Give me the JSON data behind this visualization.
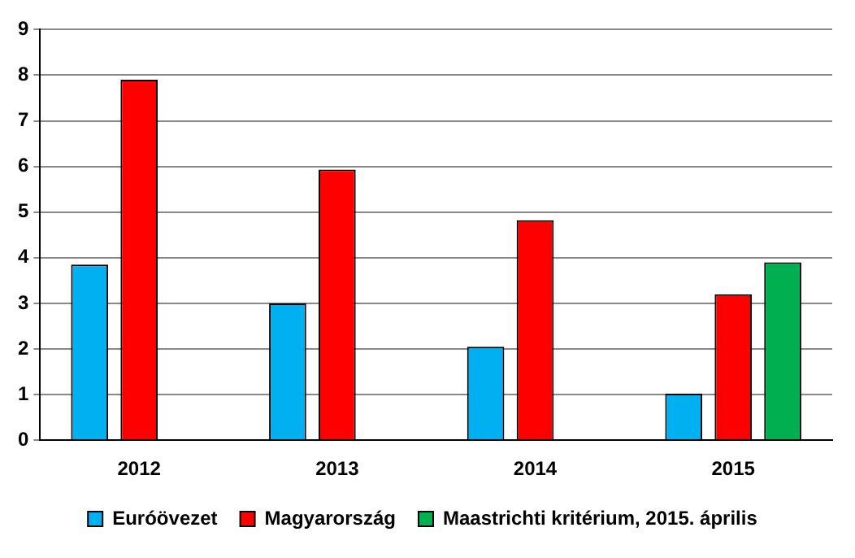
{
  "chart_data": {
    "type": "bar",
    "categories": [
      "2012",
      "2013",
      "2014",
      "2015"
    ],
    "series": [
      {
        "name": "Euróövezet",
        "color": "#00b0f0",
        "values": [
          3.85,
          3.0,
          2.05,
          1.02
        ]
      },
      {
        "name": "Magyarország",
        "color": "#ff0000",
        "values": [
          7.9,
          5.93,
          4.82,
          3.2
        ]
      },
      {
        "name": "Maastrichti kritérium, 2015. április",
        "color": "#00b050",
        "values": [
          null,
          null,
          null,
          3.9
        ]
      }
    ],
    "ylim": [
      0,
      9
    ],
    "yticks": [
      0,
      1,
      2,
      3,
      4,
      5,
      6,
      7,
      8,
      9
    ],
    "grid": "y",
    "legend": "bottom"
  }
}
